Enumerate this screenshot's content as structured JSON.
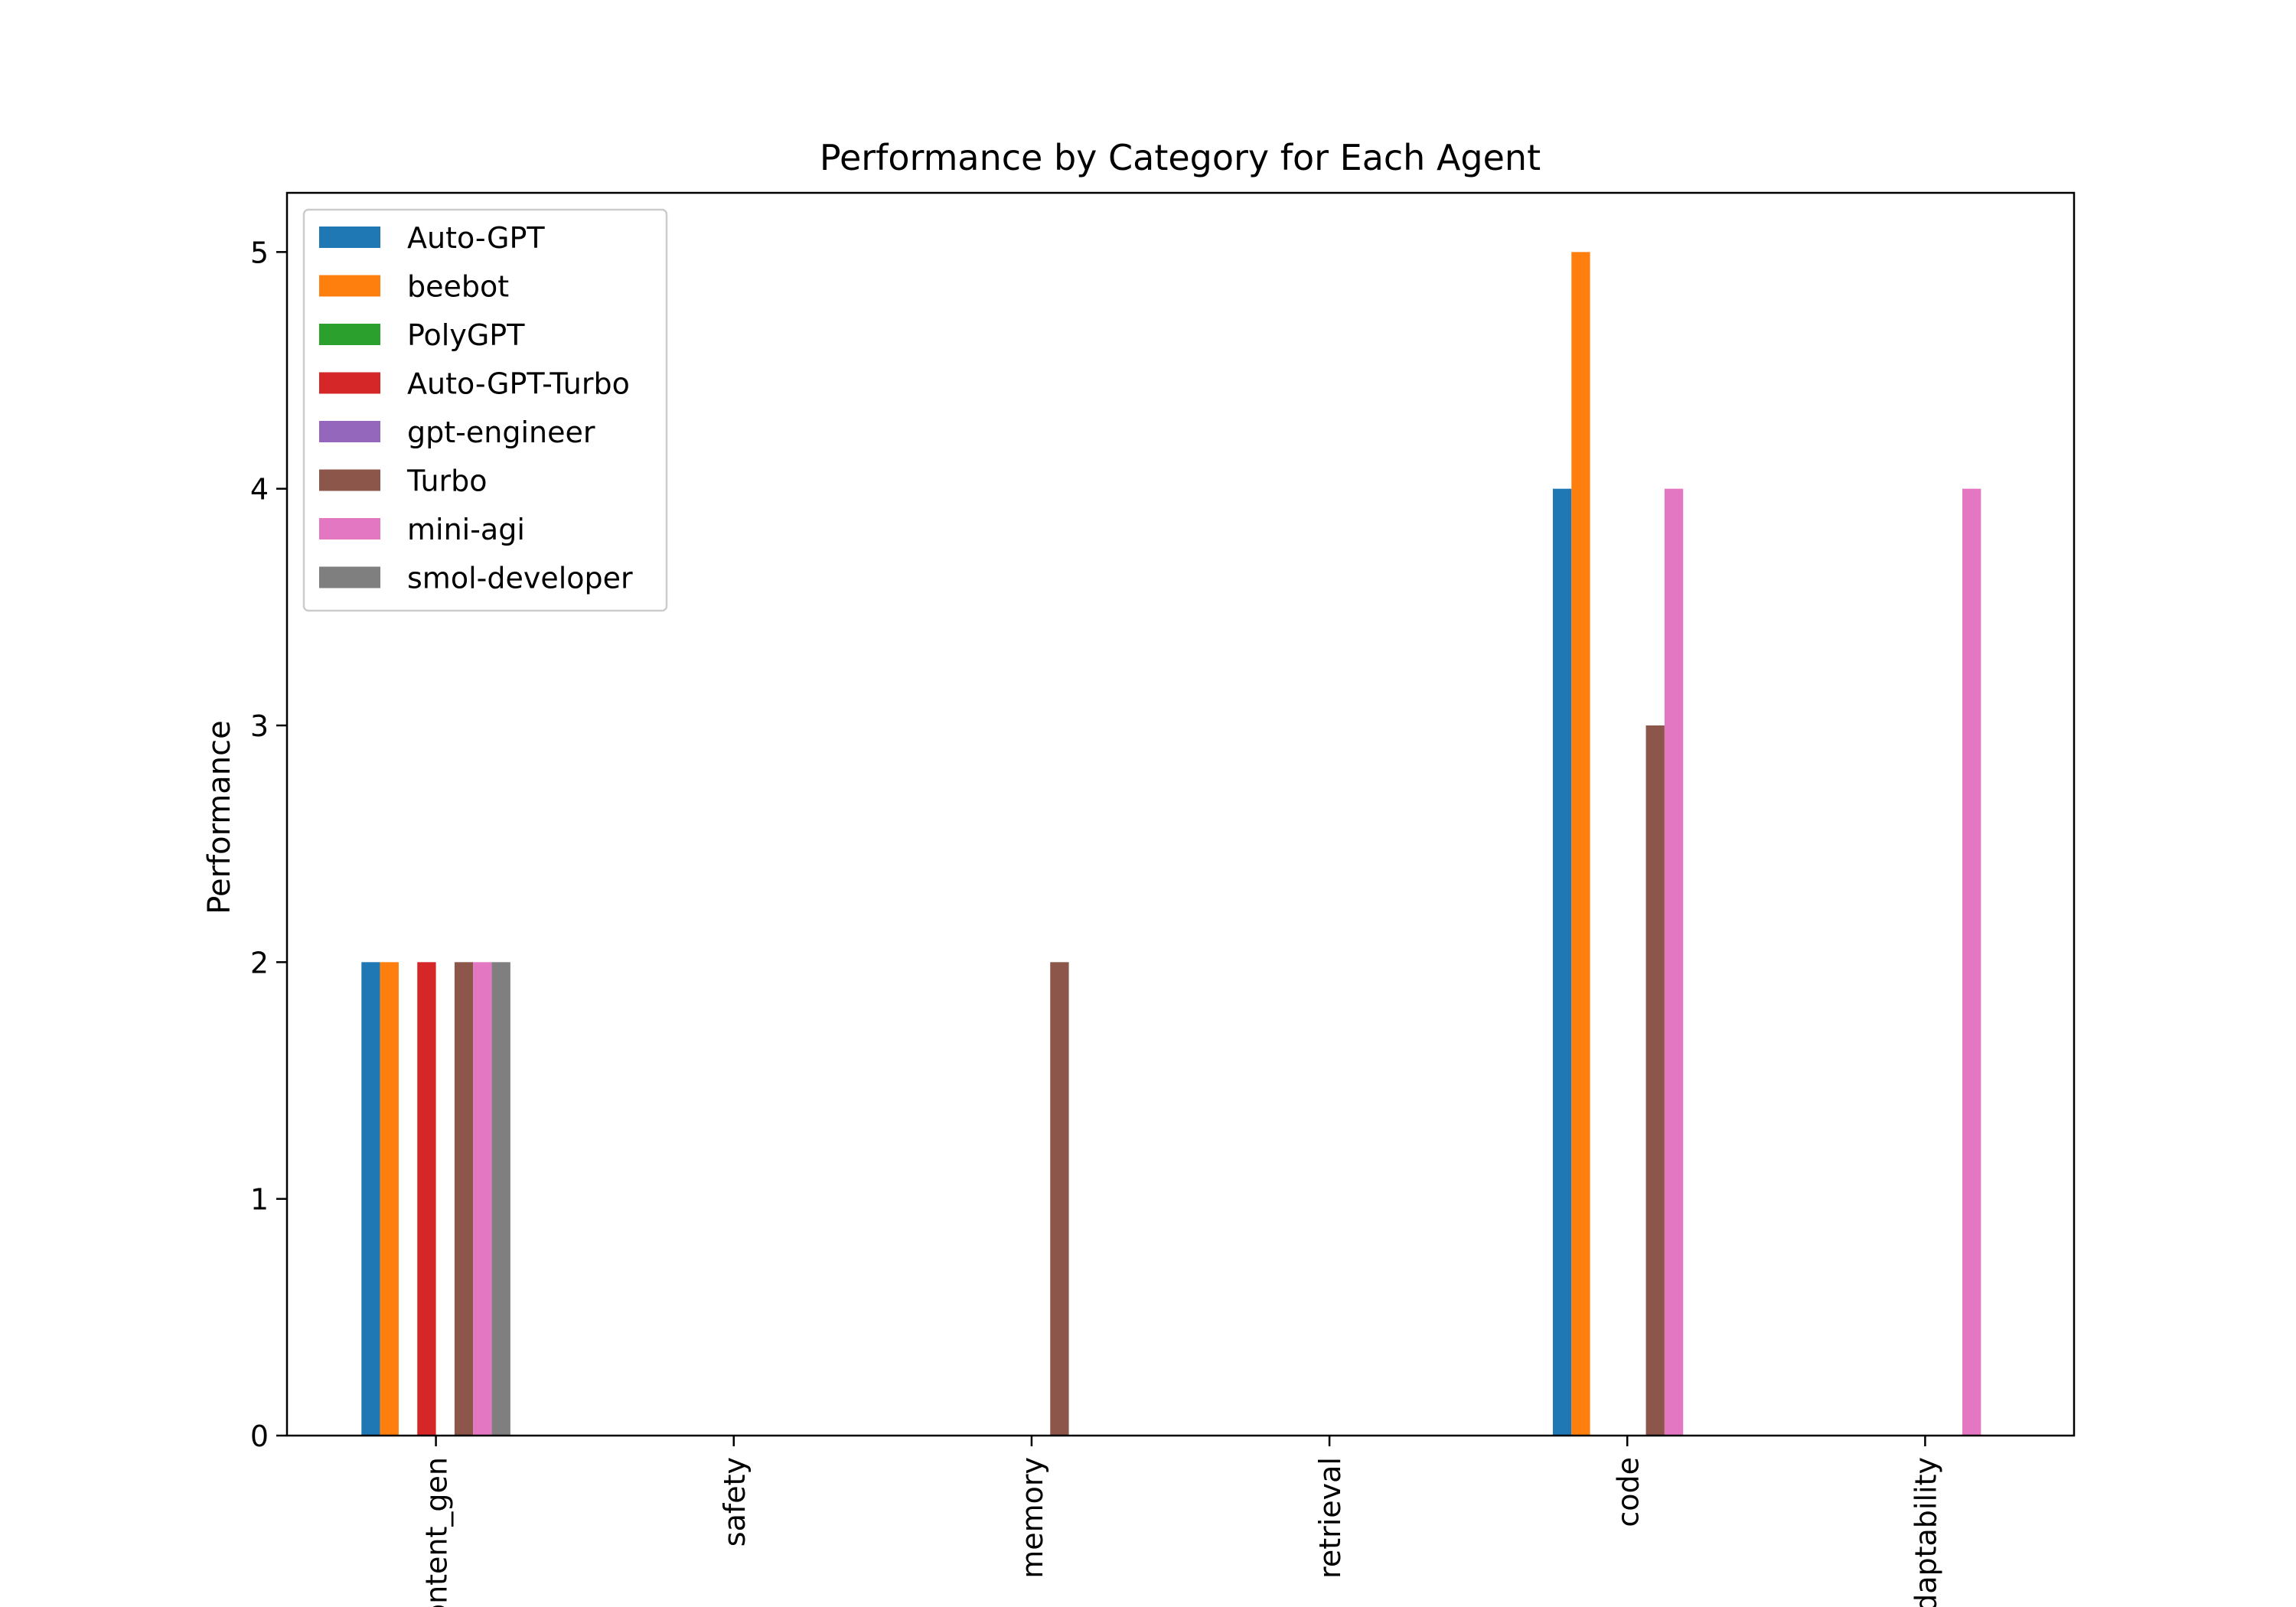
{
  "chart_data": {
    "type": "bar",
    "title": "Performance by Category for Each Agent",
    "xlabel": "",
    "ylabel": "Performance",
    "ylim": [
      0,
      5.25
    ],
    "yticks": [
      0,
      1,
      2,
      3,
      4,
      5
    ],
    "grid": false,
    "legend_position": "top-left",
    "categories": [
      "content_gen",
      "safety",
      "memory",
      "retrieval",
      "code",
      "adaptability"
    ],
    "series": [
      {
        "name": "Auto-GPT",
        "color": "#1f77b4",
        "values": [
          2,
          0,
          0,
          0,
          4,
          0
        ]
      },
      {
        "name": "beebot",
        "color": "#ff7f0e",
        "values": [
          2,
          0,
          0,
          0,
          5,
          0
        ]
      },
      {
        "name": "PolyGPT",
        "color": "#2ca02c",
        "values": [
          0,
          0,
          0,
          0,
          0,
          0
        ]
      },
      {
        "name": "Auto-GPT-Turbo",
        "color": "#d62728",
        "values": [
          2,
          0,
          0,
          0,
          0,
          0
        ]
      },
      {
        "name": "gpt-engineer",
        "color": "#9467bd",
        "values": [
          0,
          0,
          0,
          0,
          0,
          0
        ]
      },
      {
        "name": "Turbo",
        "color": "#8c564b",
        "values": [
          2,
          0,
          2,
          0,
          3,
          0
        ]
      },
      {
        "name": "mini-agi",
        "color": "#e377c2",
        "values": [
          2,
          0,
          0,
          0,
          4,
          4
        ]
      },
      {
        "name": "smol-developer",
        "color": "#7f7f7f",
        "values": [
          2,
          0,
          0,
          0,
          0,
          0
        ]
      }
    ]
  }
}
